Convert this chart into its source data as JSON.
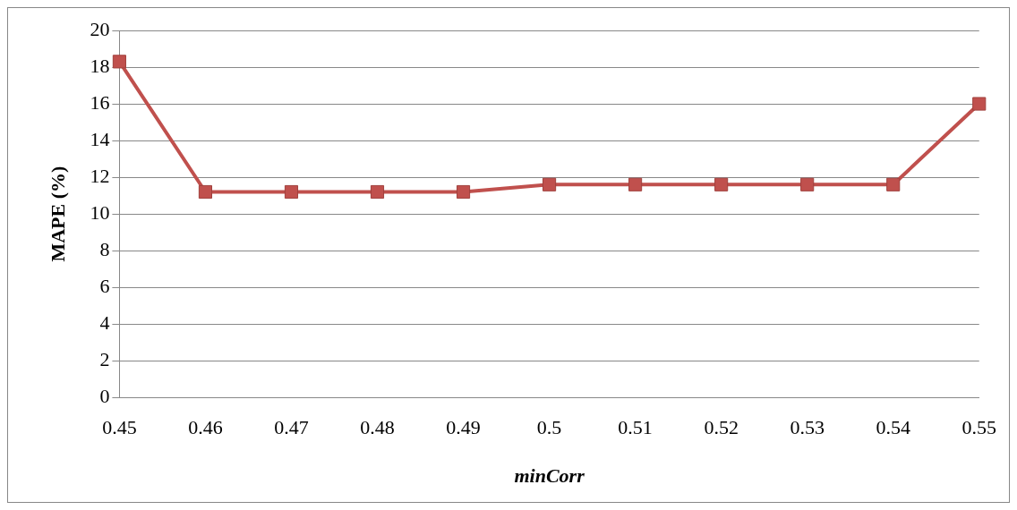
{
  "chart_data": {
    "type": "line",
    "xlabel": "minCorr",
    "ylabel": "MAPE (%)",
    "categories": [
      "0.45",
      "0.46",
      "0.47",
      "0.48",
      "0.49",
      "0.5",
      "0.51",
      "0.52",
      "0.53",
      "0.54",
      "0.55"
    ],
    "series": [
      {
        "color": "#c0504d",
        "values": [
          18.3,
          11.2,
          11.2,
          11.2,
          11.2,
          11.6,
          11.6,
          11.6,
          11.6,
          11.6,
          16.0
        ]
      }
    ],
    "ylim": [
      0,
      20
    ],
    "yticks": [
      0,
      2,
      4,
      6,
      8,
      10,
      12,
      14,
      16,
      18,
      20
    ],
    "grid": "y",
    "legend": false,
    "marker": "square",
    "line_style": "solid"
  }
}
